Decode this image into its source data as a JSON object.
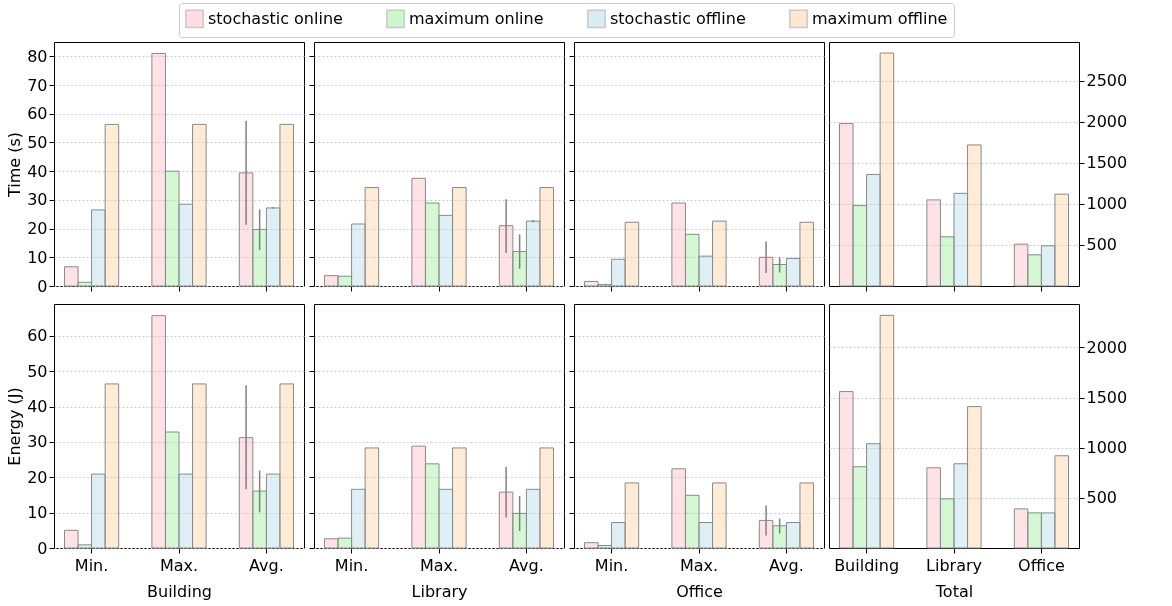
{
  "chart_data": [
    {
      "type": "bar",
      "ylabel": "Time (s)",
      "categories": [
        "Min.",
        "Max.",
        "Avg."
      ],
      "ylim": [
        0,
        85
      ],
      "yticks": [
        0,
        10,
        20,
        30,
        40,
        50,
        60,
        70,
        80
      ],
      "grid": "y",
      "legend": "top",
      "tick_labels": "y",
      "series": [
        {
          "name": "stochastic online",
          "color": "#ffb6c1",
          "values": [
            6.7,
            81,
            39.4
          ],
          "errors": [
            null,
            null,
            [
              21.3,
              57.6
            ]
          ]
        },
        {
          "name": "maximum online",
          "color": "#90ee90",
          "values": [
            1.3,
            40,
            19.7
          ],
          "errors": [
            null,
            null,
            [
              12.5,
              26.7
            ]
          ]
        },
        {
          "name": "stochastic offline",
          "color": "#add8e6",
          "values": [
            26.5,
            28.5,
            27.2
          ],
          "errors": [
            null,
            null,
            [
              26.9,
              27.5
            ]
          ]
        },
        {
          "name": "maximum offline",
          "color": "#ffcc99",
          "values": [
            56.3,
            56.3,
            56.3
          ],
          "errors": [
            null,
            null,
            null
          ]
        }
      ]
    },
    {
      "type": "bar",
      "categories": [
        "Min.",
        "Max.",
        "Avg."
      ],
      "ylim": [
        0,
        85
      ],
      "yticks": [
        0,
        10,
        20,
        30,
        40,
        50,
        60,
        70,
        80
      ],
      "grid": "y",
      "tick_labels": false,
      "series": [
        {
          "name": "stochastic online",
          "color": "#ffb6c1",
          "values": [
            3.6,
            37.5,
            21
          ],
          "errors": [
            null,
            null,
            [
              11.5,
              30.2
            ]
          ]
        },
        {
          "name": "maximum online",
          "color": "#90ee90",
          "values": [
            3.4,
            28.9,
            12
          ],
          "errors": [
            null,
            null,
            [
              6,
              18
            ]
          ]
        },
        {
          "name": "stochastic offline",
          "color": "#add8e6",
          "values": [
            21.6,
            24.6,
            22.6
          ],
          "errors": [
            null,
            null,
            [
              22.2,
              23
            ]
          ]
        },
        {
          "name": "maximum offline",
          "color": "#ffcc99",
          "values": [
            34.3,
            34.3,
            34.3
          ],
          "errors": [
            null,
            null,
            null
          ]
        }
      ]
    },
    {
      "type": "bar",
      "categories": [
        "Min.",
        "Max.",
        "Avg."
      ],
      "ylim": [
        0,
        85
      ],
      "yticks": [
        0,
        10,
        20,
        30,
        40,
        50,
        60,
        70,
        80
      ],
      "grid": "y",
      "tick_labels": false,
      "series": [
        {
          "name": "stochastic online",
          "color": "#ffb6c1",
          "values": [
            1.6,
            28.9,
            10
          ],
          "errors": [
            null,
            null,
            [
              4.5,
              15.5
            ]
          ]
        },
        {
          "name": "maximum online",
          "color": "#90ee90",
          "values": [
            0.5,
            18,
            7.5
          ],
          "errors": [
            null,
            null,
            [
              4.7,
              10
            ]
          ]
        },
        {
          "name": "stochastic offline",
          "color": "#add8e6",
          "values": [
            9.3,
            10.4,
            9.6
          ],
          "errors": [
            null,
            null,
            null
          ]
        },
        {
          "name": "maximum offline",
          "color": "#ffcc99",
          "values": [
            22.2,
            22.6,
            22.2
          ],
          "errors": [
            null,
            null,
            null
          ]
        }
      ]
    },
    {
      "type": "bar",
      "categories": [
        "Building",
        "Library",
        "Office"
      ],
      "y2lim": [
        0,
        2975
      ],
      "y2ticks": [
        500,
        1000,
        1500,
        2000,
        2500
      ],
      "grid": "y",
      "tick_labels": "y",
      "series": [
        {
          "name": "stochastic online",
          "color": "#ffb6c1",
          "axis": "y2",
          "values": [
            1980,
            1050,
            510
          ]
        },
        {
          "name": "maximum online",
          "color": "#90ee90",
          "axis": "y2",
          "values": [
            980,
            600,
            380
          ]
        },
        {
          "name": "stochastic offline",
          "color": "#add8e6",
          "axis": "y2",
          "values": [
            1360,
            1130,
            490
          ]
        },
        {
          "name": "maximum offline",
          "color": "#ffcc99",
          "axis": "y2",
          "values": [
            2840,
            1720,
            1120
          ]
        }
      ]
    },
    {
      "type": "bar",
      "ylabel": "Energy (J)",
      "xlabel": "Building",
      "categories": [
        "Min.",
        "Max.",
        "Avg."
      ],
      "ylim": [
        0,
        69
      ],
      "yticks": [
        0,
        10,
        20,
        30,
        40,
        50,
        60
      ],
      "grid": "y",
      "series": [
        {
          "name": "stochastic online",
          "color": "#ffb6c1",
          "values": [
            5.0,
            65.7,
            31.2
          ],
          "errors": [
            null,
            null,
            [
              16.6,
              46
            ]
          ]
        },
        {
          "name": "maximum online",
          "color": "#90ee90",
          "values": [
            0.9,
            32.8,
            16.1
          ],
          "errors": [
            null,
            null,
            [
              10.1,
              21.9
            ]
          ]
        },
        {
          "name": "stochastic offline",
          "color": "#add8e6",
          "values": [
            20.9,
            20.9,
            20.9
          ],
          "errors": [
            null,
            null,
            null
          ]
        },
        {
          "name": "maximum offline",
          "color": "#ffcc99",
          "values": [
            46.4,
            46.4,
            46.4
          ],
          "errors": [
            null,
            null,
            null
          ]
        }
      ]
    },
    {
      "type": "bar",
      "xlabel": "Library",
      "categories": [
        "Min.",
        "Max.",
        "Avg."
      ],
      "ylim": [
        0,
        69
      ],
      "yticks": [
        0,
        10,
        20,
        30,
        40,
        50,
        60
      ],
      "grid": "y",
      "tick_labels": "x",
      "series": [
        {
          "name": "stochastic online",
          "color": "#ffb6c1",
          "values": [
            2.6,
            28.8,
            15.8
          ],
          "errors": [
            null,
            null,
            [
              8.6,
              23
            ]
          ]
        },
        {
          "name": "maximum online",
          "color": "#90ee90",
          "values": [
            2.8,
            23.8,
            9.8
          ],
          "errors": [
            null,
            null,
            [
              4.8,
              14.7
            ]
          ]
        },
        {
          "name": "stochastic offline",
          "color": "#add8e6",
          "values": [
            16.6,
            16.6,
            16.6
          ],
          "errors": [
            null,
            null,
            null
          ]
        },
        {
          "name": "maximum offline",
          "color": "#ffcc99",
          "values": [
            28.3,
            28.3,
            28.3
          ],
          "errors": [
            null,
            null,
            null
          ]
        }
      ]
    },
    {
      "type": "bar",
      "xlabel": "Office",
      "categories": [
        "Min.",
        "Max.",
        "Avg."
      ],
      "ylim": [
        0,
        69
      ],
      "yticks": [
        0,
        10,
        20,
        30,
        40,
        50,
        60
      ],
      "grid": "y",
      "tick_labels": "x",
      "series": [
        {
          "name": "stochastic online",
          "color": "#ffb6c1",
          "values": [
            1.5,
            22.4,
            7.8
          ],
          "errors": [
            null,
            null,
            [
              3.5,
              12
            ]
          ]
        },
        {
          "name": "maximum online",
          "color": "#90ee90",
          "values": [
            0.7,
            14.9,
            6.3
          ],
          "errors": [
            null,
            null,
            [
              4.1,
              8.3
            ]
          ]
        },
        {
          "name": "stochastic offline",
          "color": "#add8e6",
          "values": [
            7.2,
            7.2,
            7.2
          ],
          "errors": [
            null,
            null,
            null
          ]
        },
        {
          "name": "maximum offline",
          "color": "#ffcc99",
          "values": [
            18.4,
            18.4,
            18.4
          ],
          "errors": [
            null,
            null,
            null
          ]
        }
      ]
    },
    {
      "type": "bar",
      "xlabel": "Total",
      "categories": [
        "Building",
        "Library",
        "Office"
      ],
      "y2lim": [
        0,
        2433
      ],
      "y2ticks": [
        500,
        1000,
        1500,
        2000
      ],
      "grid": "y",
      "series": [
        {
          "name": "stochastic online",
          "color": "#ffb6c1",
          "axis": "y2",
          "values": [
            1560,
            800,
            390
          ]
        },
        {
          "name": "maximum online",
          "color": "#90ee90",
          "axis": "y2",
          "values": [
            810,
            490,
            350
          ]
        },
        {
          "name": "stochastic offline",
          "color": "#add8e6",
          "axis": "y2",
          "values": [
            1040,
            840,
            350
          ]
        },
        {
          "name": "maximum offline",
          "color": "#ffcc99",
          "axis": "y2",
          "values": [
            2320,
            1410,
            920
          ]
        }
      ]
    }
  ]
}
